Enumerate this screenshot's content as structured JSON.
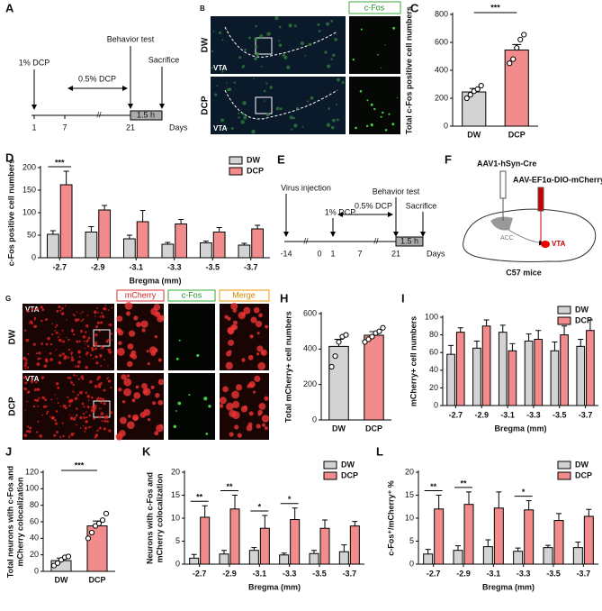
{
  "timeline_a": {
    "label": "A",
    "dcp_1": "1% DCP",
    "dcp_05": "0.5% DCP",
    "behavior": "Behavior test",
    "sacrifice": "Sacrifice",
    "duration": "1.5 h",
    "ticks": [
      "1",
      "7",
      "21"
    ],
    "unit": "Days"
  },
  "images_b": {
    "label": "B",
    "channel": "c-Fos",
    "rows": [
      "DW",
      "DCP"
    ],
    "region": "VTA"
  },
  "timeline_e": {
    "label": "E",
    "virus": "Virus injection",
    "dcp_1": "1% DCP",
    "dcp_05": "0.5% DCP",
    "behavior": "Behavior test",
    "sacrifice": "Sacrifice",
    "duration": "1.5 h",
    "ticks": [
      "-14",
      "0",
      "1",
      "7",
      "21"
    ],
    "unit": "Days"
  },
  "diagram_f": {
    "label": "F",
    "virus_1": "AAV1-hSyn-Cre",
    "virus_2": "AAV-EF1α-DIO-mCherry",
    "source": "ACC",
    "target": "VTA",
    "animal": "C57 mice"
  },
  "images_g": {
    "label": "G",
    "channels": [
      "mCherry",
      "c-Fos",
      "Merge"
    ],
    "rows": [
      "DW",
      "DCP"
    ],
    "region": "VTA"
  },
  "chart_data": [
    {
      "type": "bar",
      "label": "C",
      "y_label": [
        "Total c-Fos positive cell numbers"
      ],
      "categories": [
        "DW",
        "DCP"
      ],
      "values": [
        245,
        545
      ],
      "errors": [
        25,
        40
      ],
      "colors": [
        "#d3d3d3",
        "#f28b8b"
      ],
      "points": [
        [
          200,
          225,
          250,
          265,
          290
        ],
        [
          450,
          480,
          560,
          620,
          655
        ]
      ],
      "significance": "***",
      "ylim": [
        0,
        800
      ],
      "yticks": [
        0,
        200,
        400,
        600,
        800
      ]
    },
    {
      "type": "grouped_bar",
      "label": "D",
      "y_label": [
        "c-Fos positive cell numbers"
      ],
      "x_label": "Bregma (mm)",
      "categories": [
        "-2.7",
        "-2.9",
        "-3.1",
        "-3.3",
        "-3.5",
        "-3.7"
      ],
      "series": [
        {
          "name": "DW",
          "color": "#d3d3d3",
          "values": [
            52,
            57,
            42,
            30,
            33,
            28
          ],
          "errors": [
            8,
            12,
            8,
            4,
            4,
            4
          ]
        },
        {
          "name": "DCP",
          "color": "#f28b8b",
          "values": [
            162,
            106,
            80,
            75,
            57,
            64
          ],
          "errors": [
            30,
            10,
            25,
            10,
            10,
            8
          ]
        }
      ],
      "significance": [
        "***",
        null,
        null,
        null,
        null,
        null
      ],
      "legend": "upper right",
      "ylim": [
        0,
        200
      ],
      "yticks": [
        0,
        50,
        100,
        150,
        200
      ]
    },
    {
      "type": "bar",
      "label": "H",
      "y_label": [
        "Total mCherry+ cell numbers"
      ],
      "categories": [
        "DW",
        "DCP"
      ],
      "values": [
        415,
        478
      ],
      "errors": [
        40,
        20
      ],
      "colors": [
        "#d3d3d3",
        "#f28b8b"
      ],
      "points": [
        [
          300,
          360,
          440,
          470,
          480
        ],
        [
          440,
          455,
          470,
          490,
          500,
          520
        ]
      ],
      "significance": null,
      "ylim": [
        0,
        600
      ],
      "yticks": [
        0,
        200,
        400,
        600
      ]
    },
    {
      "type": "grouped_bar",
      "label": "I",
      "y_label": [
        "mCherry+ cell numbers"
      ],
      "x_label": "Bregma (mm)",
      "categories": [
        "-2.7",
        "-2.9",
        "-3.1",
        "-3.3",
        "-3.5",
        "-3.7"
      ],
      "series": [
        {
          "name": "DW",
          "color": "#d3d3d3",
          "values": [
            58,
            65,
            83,
            73,
            62,
            67
          ],
          "errors": [
            10,
            8,
            8,
            8,
            10,
            8
          ]
        },
        {
          "name": "DCP",
          "color": "#f28b8b",
          "values": [
            83,
            90,
            62,
            75,
            80,
            85
          ],
          "errors": [
            5,
            7,
            8,
            10,
            10,
            12
          ]
        }
      ],
      "significance": [
        null,
        null,
        null,
        null,
        null,
        null
      ],
      "legend": "upper right",
      "ylim": [
        0,
        100
      ],
      "yticks": [
        0,
        20,
        40,
        60,
        80,
        100
      ]
    },
    {
      "type": "bar",
      "label": "J",
      "y_label": [
        "Total neurons with c-Fos and",
        "mCherry colocalization"
      ],
      "categories": [
        "DW",
        "DCP"
      ],
      "values": [
        13,
        55
      ],
      "errors": [
        3,
        6
      ],
      "colors": [
        "#d3d3d3",
        "#f28b8b"
      ],
      "points": [
        [
          7,
          10,
          14,
          17,
          18
        ],
        [
          40,
          47,
          55,
          58,
          62,
          70
        ]
      ],
      "significance": "***",
      "ylim": [
        0,
        120
      ],
      "yticks": [
        0,
        20,
        40,
        60,
        80,
        100,
        120
      ]
    },
    {
      "type": "grouped_bar",
      "label": "K",
      "y_label": [
        "Neurons with c-Fos and",
        "mCherry colocalization"
      ],
      "x_label": "Bregma (mm)",
      "categories": [
        "-2.7",
        "-2.9",
        "-3.1",
        "-3.3",
        "-3.5",
        "-3.7"
      ],
      "series": [
        {
          "name": "DW",
          "color": "#d3d3d3",
          "values": [
            1.3,
            2.2,
            3.0,
            2.0,
            2.3,
            2.7
          ],
          "errors": [
            0.8,
            0.8,
            0.6,
            0.4,
            0.7,
            1.5
          ]
        },
        {
          "name": "DCP",
          "color": "#f28b8b",
          "values": [
            10.2,
            12,
            7.8,
            9.7,
            7.8,
            8.3
          ],
          "errors": [
            2.5,
            3,
            2.8,
            2.5,
            1.8,
            1
          ]
        }
      ],
      "significance": [
        "**",
        "**",
        "*",
        "*",
        null,
        null
      ],
      "legend": "upper right",
      "ylim": [
        0,
        20
      ],
      "yticks": [
        0,
        5,
        10,
        15,
        20
      ]
    },
    {
      "type": "grouped_bar",
      "label": "L",
      "y_label": [
        "c-Fos⁺/mCherry⁺ %"
      ],
      "x_label": "Bregma (mm)",
      "categories": [
        "-2.7",
        "-2.9",
        "-3.1",
        "-3.3",
        "-3.5",
        "-3.7"
      ],
      "series": [
        {
          "name": "DW",
          "color": "#d3d3d3",
          "values": [
            2.2,
            3.0,
            3.8,
            2.8,
            3.6,
            3.6
          ],
          "errors": [
            1,
            1,
            1.5,
            0.7,
            0.5,
            1.2
          ]
        },
        {
          "name": "DCP",
          "color": "#f28b8b",
          "values": [
            12,
            13,
            12.2,
            11.8,
            9.5,
            10.4
          ],
          "errors": [
            3,
            2.7,
            3.5,
            2,
            1.5,
            1.5
          ]
        }
      ],
      "significance": [
        "**",
        "**",
        null,
        "*",
        null,
        null
      ],
      "legend": "upper right",
      "ylim": [
        0,
        20
      ],
      "yticks": [
        0,
        5,
        10,
        15,
        20
      ]
    }
  ]
}
